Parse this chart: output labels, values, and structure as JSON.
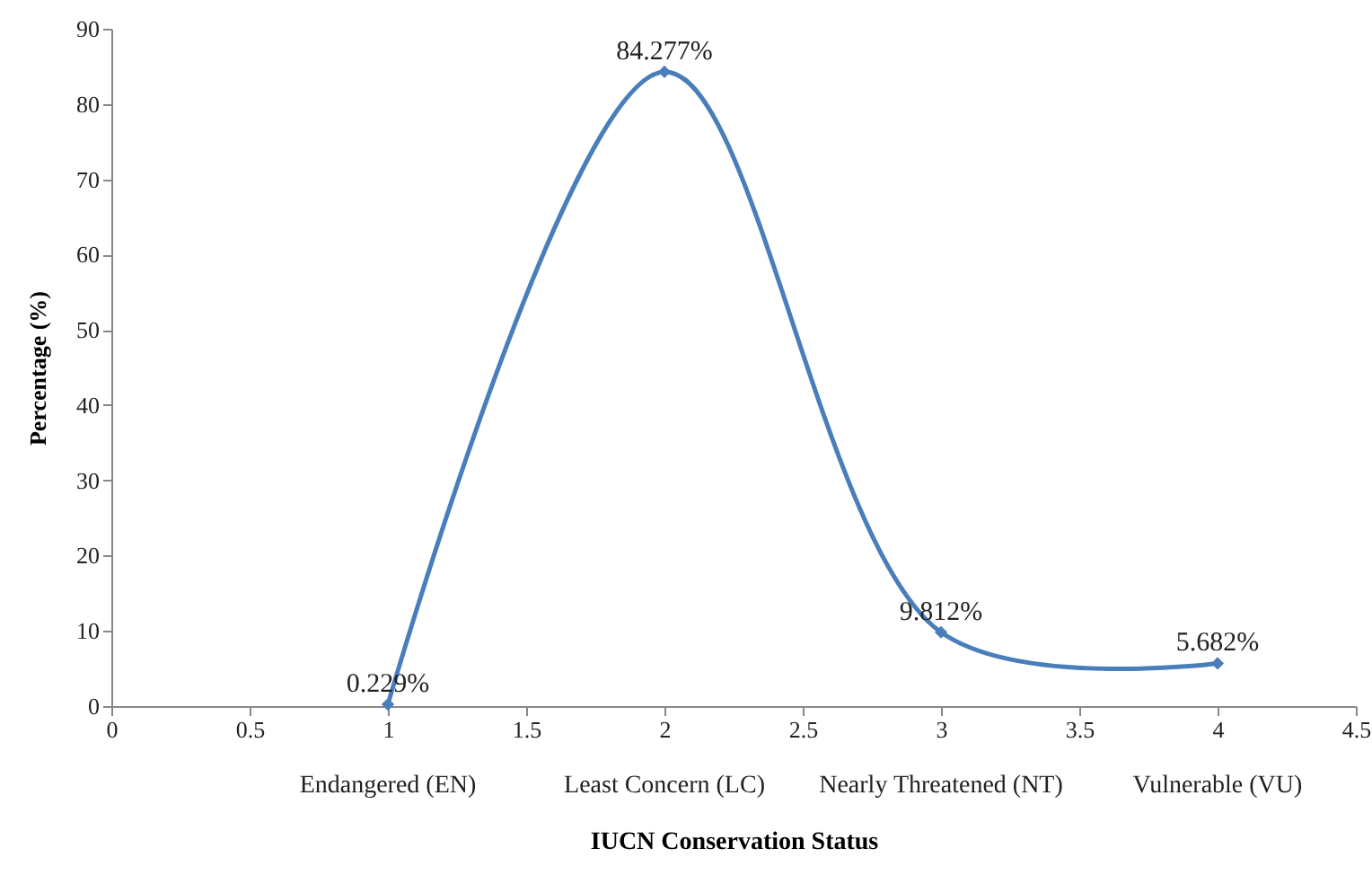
{
  "chart_data": {
    "type": "line",
    "xlabel": "IUCN Conservation Status",
    "ylabel": "Percentage (%)",
    "x": [
      1,
      2,
      3,
      4
    ],
    "series": [
      {
        "color": "#4a7ebb",
        "values": [
          0.229,
          84.277,
          9.812,
          5.682
        ],
        "value_labels": [
          "0.229%",
          "84.277%",
          "9.812%",
          "5.682%"
        ]
      }
    ],
    "xlim": [
      0,
      4.5
    ],
    "xticks": [
      0,
      0.5,
      1,
      1.5,
      2,
      2.5,
      3,
      3.5,
      4,
      4.5
    ],
    "ylim": [
      0,
      90
    ],
    "yticks": [
      0,
      10,
      20,
      30,
      40,
      50,
      60,
      70,
      80,
      90
    ],
    "annotations": [
      "Endangered (EN)",
      "Least Concern (LC)",
      "Nearly Threatened (NT)",
      "Vulnerable (VU)"
    ],
    "marker": "diamond",
    "line_style": "solid",
    "grid": false
  }
}
